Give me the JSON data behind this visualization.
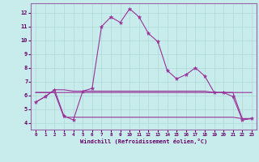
{
  "xlabel": "Windchill (Refroidissement éolien,°C)",
  "bg_color": "#c8ecec",
  "line_color": "#993399",
  "grid_color": "#b0d8d8",
  "text_color": "#660066",
  "spine_color": "#9966aa",
  "xlim": [
    -0.5,
    23.5
  ],
  "ylim": [
    3.5,
    12.7
  ],
  "yticks": [
    4,
    5,
    6,
    7,
    8,
    9,
    10,
    11,
    12
  ],
  "xtick_labels": [
    "0",
    "1",
    "2",
    "3",
    "4",
    "5",
    "6",
    "7",
    "8",
    "9",
    "10",
    "11",
    "12",
    "13",
    "14",
    "15",
    "16",
    "17",
    "18",
    "19",
    "20",
    "21",
    "22",
    "23"
  ],
  "line1_x": [
    0,
    1,
    2,
    3,
    4,
    5,
    6,
    7,
    8,
    9,
    10,
    11,
    12,
    13,
    14,
    15,
    16,
    17,
    18,
    19,
    20,
    21,
    22,
    23
  ],
  "line1_y": [
    5.5,
    5.9,
    6.4,
    4.5,
    4.2,
    6.3,
    6.5,
    11.0,
    11.7,
    11.3,
    12.3,
    11.7,
    10.5,
    9.9,
    7.8,
    7.2,
    7.5,
    8.0,
    7.4,
    6.2,
    6.2,
    5.9,
    4.2,
    4.3
  ],
  "line2_x": [
    0,
    1,
    2,
    3,
    4,
    5,
    6,
    7,
    8,
    9,
    10,
    11,
    12,
    13,
    14,
    15,
    16,
    17,
    18,
    19,
    20,
    21,
    22,
    23
  ],
  "line2_y": [
    6.2,
    6.2,
    6.2,
    4.4,
    4.4,
    4.4,
    4.4,
    4.4,
    4.4,
    4.4,
    4.4,
    4.4,
    4.4,
    4.4,
    4.4,
    4.4,
    4.4,
    4.4,
    4.4,
    4.4,
    4.4,
    4.4,
    4.3,
    4.3
  ],
  "line3_x": [
    0,
    1,
    2,
    3,
    4,
    5,
    6,
    7,
    8,
    9,
    10,
    11,
    12,
    13,
    14,
    15,
    16,
    17,
    18,
    19,
    20,
    21,
    22,
    23
  ],
  "line3_y": [
    5.5,
    5.9,
    6.4,
    6.4,
    6.3,
    6.3,
    6.3,
    6.3,
    6.3,
    6.3,
    6.3,
    6.3,
    6.3,
    6.3,
    6.3,
    6.3,
    6.3,
    6.3,
    6.3,
    6.2,
    6.2,
    6.2,
    6.2,
    6.2
  ],
  "line4_x": [
    0,
    1,
    2,
    3,
    4,
    5,
    6,
    7,
    8,
    9,
    10,
    11,
    12,
    13,
    14,
    15,
    16,
    17,
    18,
    19,
    20,
    21,
    22,
    23
  ],
  "line4_y": [
    6.2,
    6.2,
    6.2,
    6.2,
    6.2,
    6.2,
    6.2,
    6.2,
    6.2,
    6.2,
    6.2,
    6.2,
    6.2,
    6.2,
    6.2,
    6.2,
    6.2,
    6.2,
    6.2,
    6.2,
    6.2,
    6.2,
    4.3,
    4.3
  ]
}
